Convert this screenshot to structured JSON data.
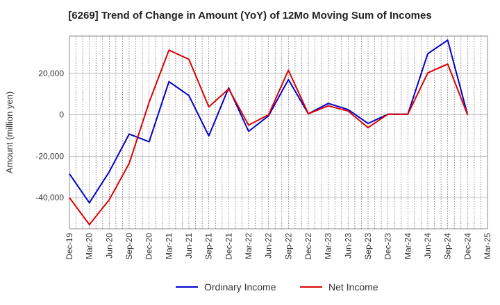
{
  "chart_data": {
    "type": "line",
    "title": "[6269]  Trend of Change in Amount (YoY) of 12Mo Moving Sum of Incomes",
    "xlabel": "",
    "ylabel": "Amount (million yen)",
    "categories": [
      "Dec-19",
      "Mar-20",
      "Jun-20",
      "Sep-20",
      "Dec-20",
      "Mar-21",
      "Jun-21",
      "Sep-21",
      "Dec-21",
      "Mar-22",
      "Jun-22",
      "Sep-22",
      "Dec-22",
      "Mar-23",
      "Jun-23",
      "Sep-23",
      "Dec-23",
      "Mar-24",
      "Jun-24",
      "Sep-24",
      "Dec-24",
      "Mar-25"
    ],
    "ylim": [
      -55000,
      38000
    ],
    "yticks": [
      -40000,
      -20000,
      0,
      20000
    ],
    "ytick_labels": [
      "-40,000",
      "-20,000",
      "0",
      "20,000"
    ],
    "grid": true,
    "legend_position": "bottom",
    "series": [
      {
        "name": "Ordinary Income",
        "color": "#0000cc",
        "values": [
          -28500,
          -42500,
          -27500,
          -9300,
          -13000,
          16000,
          9300,
          -10200,
          13000,
          -8000,
          -500,
          17000,
          500,
          5500,
          2500,
          -4200,
          300,
          300,
          29500,
          36000,
          0,
          null
        ]
      },
      {
        "name": "Net Income",
        "color": "#dd0000",
        "values": [
          -40000,
          -53000,
          -41000,
          -23500,
          6000,
          31200,
          26800,
          3800,
          12500,
          -5000,
          0,
          21500,
          500,
          4300,
          1800,
          -6200,
          300,
          300,
          20200,
          24500,
          0,
          null
        ]
      }
    ]
  }
}
